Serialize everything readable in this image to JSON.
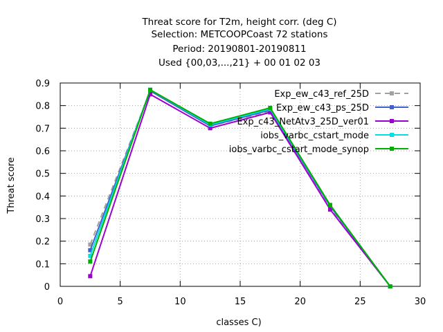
{
  "chart_data": {
    "type": "line",
    "title_lines": [
      "Threat score  for T2m, height corr. (deg C)",
      "Selection: METCOOPCoast     72 stations",
      "Period: 20190801-20190811",
      "Used {00,03,...,21} + 00 01 02 03"
    ],
    "xlabel": "classes C)",
    "ylabel": "Threat score",
    "xlim": [
      0,
      30
    ],
    "ylim": [
      0,
      0.9
    ],
    "xticks": [
      0,
      5,
      10,
      15,
      20,
      25,
      30
    ],
    "yticks": [
      0,
      0.1,
      0.2,
      0.3,
      0.4,
      0.5,
      0.6,
      0.7,
      0.8,
      0.9
    ],
    "xtick_labels": [
      "0",
      "5",
      "10",
      "15",
      "20",
      "25",
      "30"
    ],
    "ytick_labels": [
      "0",
      "0.1",
      "0.2",
      "0.3",
      "0.4",
      "0.5",
      "0.6",
      "0.7",
      "0.8",
      "0.9"
    ],
    "grid": true,
    "legend_position": "top-right",
    "x": [
      2.5,
      7.5,
      12.5,
      17.5,
      22.5,
      27.5
    ],
    "series": [
      {
        "name": "Exp_ew_c43_ref_25D",
        "color": "#a0a0a0",
        "dash": "dashed",
        "values": [
          0.185,
          0.865,
          0.71,
          0.775,
          0.35,
          0.0
        ]
      },
      {
        "name": "Exp_ew_c43_ps_25D",
        "color": "#4060d0",
        "dash": "solid",
        "values": [
          0.16,
          0.865,
          0.71,
          0.78,
          0.355,
          0.0
        ]
      },
      {
        "name": "Exp_c43_NetAtv3_25D_ver01",
        "color": "#9a00d0",
        "dash": "solid",
        "values": [
          0.045,
          0.85,
          0.7,
          0.77,
          0.34,
          0.0
        ]
      },
      {
        "name": "iobs_varbc_cstart_mode",
        "color": "#00e0e0",
        "dash": "solid",
        "values": [
          0.135,
          0.87,
          0.715,
          0.785,
          0.36,
          0.0
        ]
      },
      {
        "name": "iobs_varbc_cstart_mode_synop",
        "color": "#00b000",
        "dash": "solid",
        "values": [
          0.11,
          0.87,
          0.72,
          0.79,
          0.36,
          0.0
        ]
      }
    ]
  }
}
